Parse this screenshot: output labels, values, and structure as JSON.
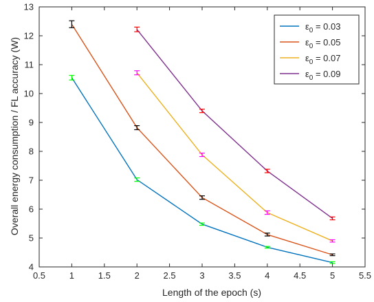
{
  "chart_data": {
    "type": "line",
    "title": "",
    "xlabel": "Length of the epoch (s)",
    "ylabel": "Overall energy consumption / FL accuracy (W)",
    "xlim": [
      0.5,
      5.5
    ],
    "ylim": [
      4,
      13
    ],
    "xticks": [
      "0.5",
      "1",
      "1.5",
      "2",
      "2.5",
      "3",
      "3.5",
      "4",
      "4.5",
      "5",
      "5.5"
    ],
    "yticks": [
      "4",
      "5",
      "6",
      "7",
      "8",
      "9",
      "10",
      "11",
      "12",
      "13"
    ],
    "grid": false,
    "legend_position": "top-right",
    "series": [
      {
        "name_symbol": "ε",
        "name_sub": "0",
        "name_value": " =  0.03",
        "color": "#0072BD",
        "errorbar_color": "#00FF00",
        "x": [
          1,
          2,
          3,
          4,
          5
        ],
        "y": [
          10.55,
          7.02,
          5.48,
          4.68,
          4.15
        ],
        "err": [
          0.08,
          0.06,
          0.04,
          0.03,
          0.03
        ]
      },
      {
        "name_symbol": "ε",
        "name_sub": "0",
        "name_value": " =  0.05",
        "color": "#D95319",
        "errorbar_color": "#000000",
        "x": [
          1,
          2,
          3,
          4,
          5
        ],
        "y": [
          12.4,
          8.82,
          6.4,
          5.12,
          4.42
        ],
        "err": [
          0.12,
          0.07,
          0.06,
          0.05,
          0.03
        ]
      },
      {
        "name_symbol": "ε",
        "name_sub": "0",
        "name_value": " =  0.07",
        "color": "#EDB120",
        "errorbar_color": "#FF00FF",
        "x": [
          2,
          3,
          4,
          5
        ],
        "y": [
          10.72,
          7.88,
          5.88,
          4.9
        ],
        "err": [
          0.07,
          0.06,
          0.06,
          0.04
        ]
      },
      {
        "name_symbol": "ε",
        "name_sub": "0",
        "name_value": " =  0.09",
        "color": "#7E2F8E",
        "errorbar_color": "#FF0000",
        "x": [
          2,
          3,
          4,
          5
        ],
        "y": [
          12.22,
          9.4,
          7.32,
          5.68
        ],
        "err": [
          0.08,
          0.06,
          0.06,
          0.05
        ]
      }
    ]
  }
}
